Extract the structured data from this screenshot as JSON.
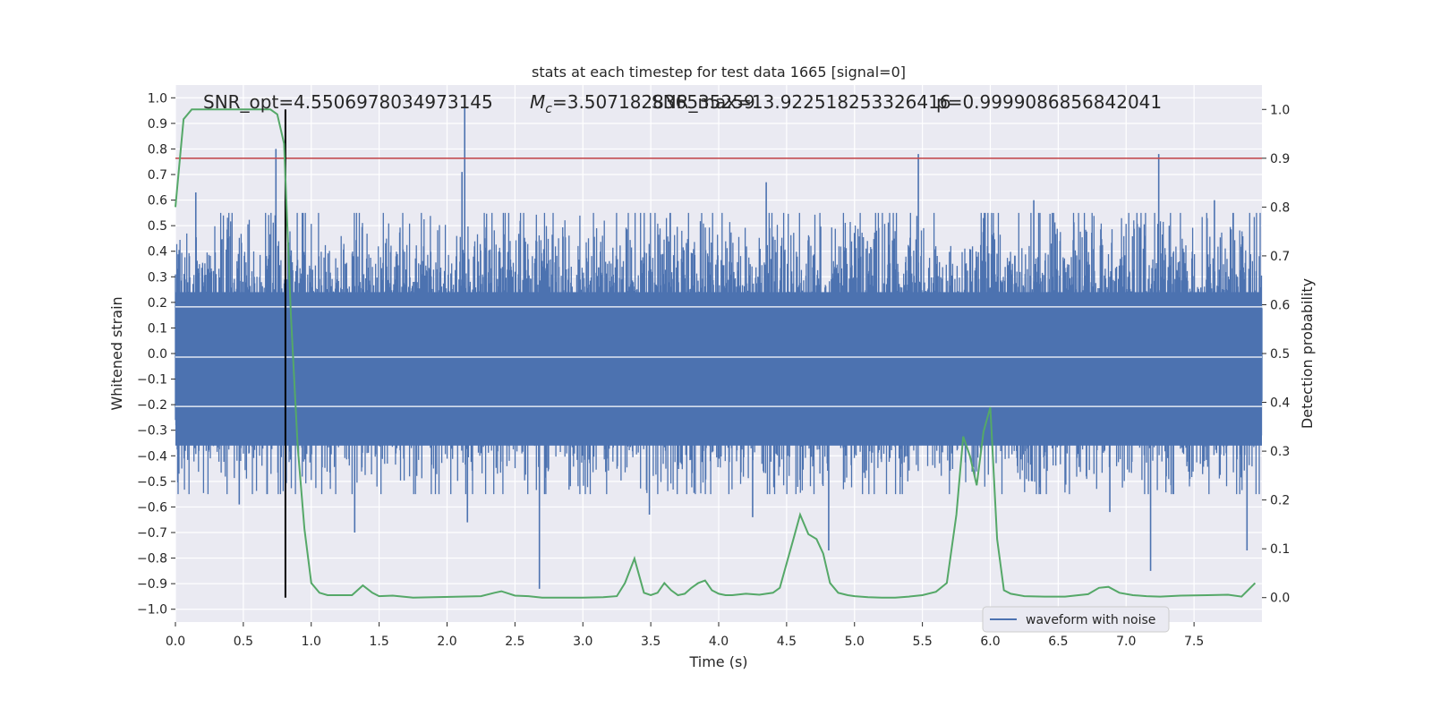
{
  "chart_data": {
    "type": "line",
    "title": "stats at each timestep for test data 1665 [signal=0]",
    "xlabel": "Time (s)",
    "ylabel_left": "Whitened strain",
    "ylabel_right": "Detection probability",
    "xlim": [
      0.0,
      8.0
    ],
    "ylim_left": [
      -1.05,
      1.05
    ],
    "ylim_right": [
      -0.05,
      1.05
    ],
    "x_ticks": [
      "0.0",
      "0.5",
      "1.0",
      "1.5",
      "2.0",
      "2.5",
      "3.0",
      "3.5",
      "4.0",
      "4.5",
      "5.0",
      "5.5",
      "6.0",
      "6.5",
      "7.0",
      "7.5"
    ],
    "y_left_ticks": [
      "1.0",
      "0.9",
      "0.8",
      "0.7",
      "0.6",
      "0.5",
      "0.4",
      "0.3",
      "0.2",
      "0.1",
      "0.0",
      "-0.1",
      "-0.2",
      "-0.3",
      "-0.4",
      "-0.5",
      "-0.6",
      "-0.7",
      "-0.8",
      "-0.9",
      "-1.0"
    ],
    "y_right_ticks": [
      "1.0",
      "0.9",
      "0.8",
      "0.7",
      "0.6",
      "0.5",
      "0.4",
      "0.3",
      "0.2",
      "0.1",
      "0.0"
    ],
    "grid": true,
    "legend_position": "lower-right",
    "annotations": {
      "snr_opt": "SNR_opt=4.5506978034973145",
      "chirp_mass_label": "M",
      "chirp_mass_sub": "c",
      "chirp_mass_value": "=3.507182836535259",
      "snr_max": "SNR_max=13.922518253326416",
      "probability": "p=0.9999086856842041"
    },
    "marker_time": 0.81,
    "threshold_probability": 0.9,
    "series": [
      {
        "name": "waveform with noise",
        "color": "#4c72b0",
        "axis": "left",
        "kind": "noise_envelope",
        "peaks": [
          {
            "x": 0.74,
            "y": 0.8
          },
          {
            "x": 2.13,
            "y": 1.0
          },
          {
            "x": 2.11,
            "y": 0.71
          },
          {
            "x": 5.47,
            "y": 0.78
          },
          {
            "x": 7.24,
            "y": 0.78
          },
          {
            "x": 0.15,
            "y": 0.63
          },
          {
            "x": 4.35,
            "y": 0.67
          },
          {
            "x": 2.68,
            "y": -0.92
          },
          {
            "x": 3.49,
            "y": -0.63
          },
          {
            "x": 4.81,
            "y": -0.77
          },
          {
            "x": 7.18,
            "y": -0.85
          },
          {
            "x": 1.32,
            "y": -0.7
          },
          {
            "x": 7.89,
            "y": -0.77
          },
          {
            "x": 0.47,
            "y": -0.59
          },
          {
            "x": 2.15,
            "y": -0.66
          },
          {
            "x": 5.95,
            "y": 0.53
          },
          {
            "x": 6.32,
            "y": 0.6
          },
          {
            "x": 7.65,
            "y": 0.6
          },
          {
            "x": 6.88,
            "y": -0.62
          },
          {
            "x": 4.25,
            "y": -0.64
          }
        ]
      },
      {
        "name": "detection probability",
        "color": "#55a868",
        "axis": "right",
        "x": [
          0.0,
          0.06,
          0.12,
          0.2,
          0.3,
          0.45,
          0.6,
          0.7,
          0.75,
          0.8,
          0.85,
          0.9,
          0.95,
          1.0,
          1.06,
          1.12,
          1.2,
          1.3,
          1.38,
          1.45,
          1.5,
          1.6,
          1.75,
          1.9,
          2.1,
          2.25,
          2.35,
          2.4,
          2.5,
          2.6,
          2.7,
          2.8,
          3.0,
          3.15,
          3.25,
          3.31,
          3.38,
          3.45,
          3.5,
          3.55,
          3.6,
          3.65,
          3.7,
          3.75,
          3.8,
          3.85,
          3.9,
          3.95,
          4.0,
          4.05,
          4.1,
          4.2,
          4.3,
          4.4,
          4.45,
          4.5,
          4.55,
          4.6,
          4.66,
          4.72,
          4.77,
          4.82,
          4.88,
          4.95,
          5.0,
          5.1,
          5.2,
          5.3,
          5.4,
          5.5,
          5.6,
          5.68,
          5.75,
          5.8,
          5.85,
          5.9,
          5.95,
          6.0,
          6.05,
          6.1,
          6.15,
          6.25,
          6.4,
          6.55,
          6.65,
          6.72,
          6.8,
          6.87,
          6.95,
          7.05,
          7.15,
          7.25,
          7.4,
          7.6,
          7.75,
          7.85,
          7.95
        ],
        "y": [
          0.8,
          0.98,
          1.0,
          1.0,
          1.0,
          1.0,
          1.0,
          1.0,
          0.99,
          0.93,
          0.58,
          0.31,
          0.14,
          0.03,
          0.01,
          0.005,
          0.005,
          0.005,
          0.025,
          0.01,
          0.003,
          0.004,
          0.0,
          0.001,
          0.002,
          0.003,
          0.01,
          0.013,
          0.004,
          0.003,
          0.0,
          0.0,
          0.0,
          0.001,
          0.003,
          0.03,
          0.08,
          0.01,
          0.005,
          0.01,
          0.03,
          0.015,
          0.005,
          0.008,
          0.02,
          0.03,
          0.035,
          0.015,
          0.008,
          0.005,
          0.005,
          0.008,
          0.006,
          0.01,
          0.02,
          0.07,
          0.12,
          0.17,
          0.13,
          0.12,
          0.09,
          0.03,
          0.01,
          0.005,
          0.003,
          0.001,
          0.0,
          0.0,
          0.002,
          0.005,
          0.012,
          0.03,
          0.17,
          0.33,
          0.29,
          0.23,
          0.34,
          0.39,
          0.12,
          0.015,
          0.008,
          0.003,
          0.002,
          0.002,
          0.005,
          0.007,
          0.02,
          0.022,
          0.01,
          0.005,
          0.003,
          0.002,
          0.004,
          0.005,
          0.006,
          0.002,
          0.03
        ]
      }
    ],
    "legend_entries": [
      "waveform with noise"
    ]
  }
}
